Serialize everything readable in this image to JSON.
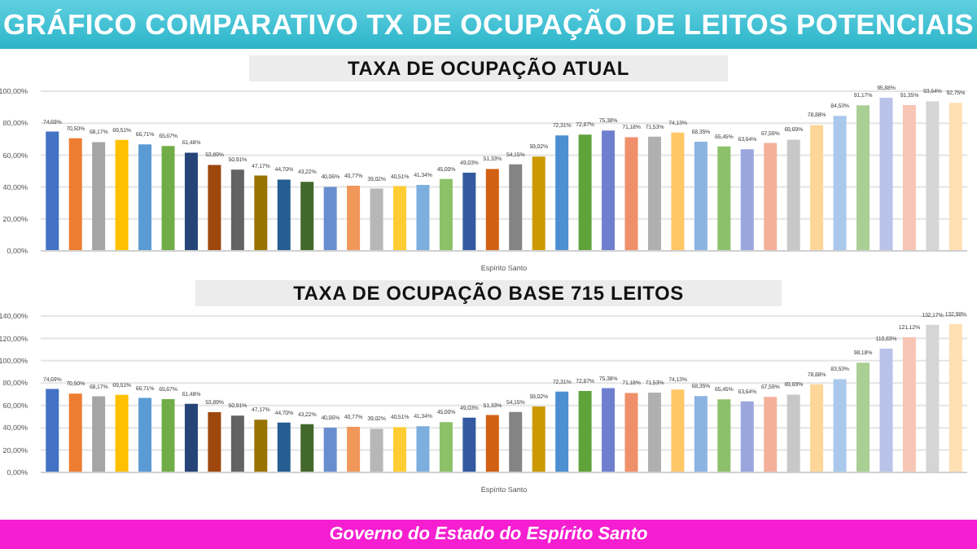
{
  "chart_data": [
    {
      "type": "bar",
      "title": "GRÁFICO COMPARATIVO TX DE OCUPAÇÃO DE LEITOS POTENCIAIS",
      "subtitle": "TAXA DE OCUPAÇÃO ATUAL",
      "xlabel": "Espírito Santo",
      "categories": [
        null,
        null,
        null,
        null,
        null,
        null,
        null,
        null,
        null,
        null,
        null,
        null,
        null,
        null,
        null,
        null,
        null,
        null,
        null,
        null,
        null,
        null,
        null,
        null,
        null,
        null,
        null,
        null,
        null,
        null,
        null,
        null,
        null,
        null,
        null,
        null,
        null,
        null,
        null,
        null
      ],
      "values": [
        74.69,
        70.5,
        68.17,
        69.51,
        66.71,
        65.67,
        61.48,
        53.89,
        50.91,
        47.17,
        44.7,
        43.22,
        40.06,
        40.77,
        39.02,
        40.51,
        41.34,
        45.0,
        49.03,
        51.33,
        54.15,
        59.02,
        72.31,
        72.87,
        75.38,
        71.18,
        71.53,
        74.13,
        68.35,
        65.45,
        63.64,
        67.59,
        69.69,
        78.88,
        84.53,
        91.17,
        95.88,
        91.35,
        93.64,
        92.75
      ],
      "value_labels": [
        "74,69%",
        "70,50%",
        "68,17%",
        "69,51%",
        "66,71%",
        "65,67%",
        "61,48%",
        "53,89%",
        "50,91%",
        "47,17%",
        "44,70%",
        "43,22%",
        "40,06%",
        "40,77%",
        "39,02%",
        "40,51%",
        "41,34%",
        "45,00%",
        "49,03%",
        "51,33%",
        "54,15%",
        "59,02%",
        "72,31%",
        "72,87%",
        "75,38%",
        "71,18%",
        "71,53%",
        "74,13%",
        "68,35%",
        "65,45%",
        "63,64%",
        "67,59%",
        "69,69%",
        "78,88%",
        "84,53%",
        "91,17%",
        "95,88%",
        "91,35%",
        "93,64%",
        "92,75%"
      ],
      "colors": [
        "#4472c4",
        "#ed7d31",
        "#a5a5a5",
        "#ffc000",
        "#5b9bd5",
        "#70ad47",
        "#264478",
        "#9e480e",
        "#636363",
        "#997300",
        "#255e91",
        "#43682b",
        "#698ed0",
        "#f1975a",
        "#b7b7b7",
        "#ffcd33",
        "#7cafdd",
        "#8cc168",
        "#335aa1",
        "#d26012",
        "#848484",
        "#cc9a00",
        "#4e8fd1",
        "#5fa33a",
        "#6f7fcf",
        "#f0906a",
        "#b0b0b0",
        "#ffc766",
        "#8cb4e2",
        "#8dc06b",
        "#9aa6dd",
        "#f4b09a",
        "#c8c8c8",
        "#ffd699",
        "#a9c8ec",
        "#aacf94",
        "#b9c3ea",
        "#f7c6b5",
        "#d5d5d5",
        "#ffe0b3"
      ],
      "ylim": [
        0,
        100
      ],
      "yticks": [
        {
          "value": 0,
          "label": "0,00%"
        },
        {
          "value": 20,
          "label": "20,00%"
        },
        {
          "value": 40,
          "label": "40,00%"
        },
        {
          "value": 60,
          "label": "60,00%"
        },
        {
          "value": 80,
          "label": "80,00%"
        },
        {
          "value": 100,
          "label": "100,00%"
        }
      ],
      "grid": "y",
      "legend": false
    },
    {
      "type": "bar",
      "title": "TAXA DE OCUPAÇÃO BASE 715 LEITOS",
      "xlabel": "Espírito Santo",
      "categories": [
        null,
        null,
        null,
        null,
        null,
        null,
        null,
        null,
        null,
        null,
        null,
        null,
        null,
        null,
        null,
        null,
        null,
        null,
        null,
        null,
        null,
        null,
        null,
        null,
        null,
        null,
        null,
        null,
        null,
        null,
        null,
        null,
        null,
        null,
        null,
        null,
        null,
        null,
        null,
        null
      ],
      "values": [
        74.69,
        70.5,
        68.17,
        69.51,
        66.71,
        65.67,
        61.48,
        53.89,
        50.91,
        47.17,
        44.7,
        43.22,
        40.06,
        40.77,
        39.02,
        40.51,
        41.34,
        45.0,
        49.03,
        51.33,
        54.15,
        59.02,
        72.31,
        72.87,
        75.38,
        71.18,
        71.53,
        74.13,
        68.35,
        65.45,
        63.64,
        67.59,
        69.69,
        78.88,
        83.53,
        98.18,
        110.83,
        121.12,
        132.17,
        132.98
      ],
      "value_labels": [
        "74,69%",
        "70,50%",
        "68,17%",
        "69,51%",
        "66,71%",
        "65,67%",
        "61,48%",
        "53,89%",
        "50,91%",
        "47,17%",
        "44,70%",
        "43,22%",
        "40,06%",
        "40,77%",
        "39,02%",
        "40,51%",
        "41,34%",
        "45,00%",
        "49,03%",
        "51,33%",
        "54,15%",
        "59,02%",
        "72,31%",
        "72,87%",
        "75,38%",
        "71,18%",
        "71,53%",
        "74,13%",
        "68,35%",
        "65,45%",
        "63,64%",
        "67,59%",
        "69,69%",
        "78,88%",
        "83,53%",
        "98,18%",
        "110,83%",
        "121,12%",
        "132,17%",
        "132,98%"
      ],
      "colors": [
        "#4472c4",
        "#ed7d31",
        "#a5a5a5",
        "#ffc000",
        "#5b9bd5",
        "#70ad47",
        "#264478",
        "#9e480e",
        "#636363",
        "#997300",
        "#255e91",
        "#43682b",
        "#698ed0",
        "#f1975a",
        "#b7b7b7",
        "#ffcd33",
        "#7cafdd",
        "#8cc168",
        "#335aa1",
        "#d26012",
        "#848484",
        "#cc9a00",
        "#4e8fd1",
        "#5fa33a",
        "#6f7fcf",
        "#f0906a",
        "#b0b0b0",
        "#ffc766",
        "#8cb4e2",
        "#8dc06b",
        "#9aa6dd",
        "#f4b09a",
        "#c8c8c8",
        "#ffd699",
        "#a9c8ec",
        "#aacf94",
        "#b9c3ea",
        "#f7c6b5",
        "#d5d5d5",
        "#ffe0b3"
      ],
      "ylim": [
        0,
        140
      ],
      "yticks": [
        {
          "value": 0,
          "label": "0,00%"
        },
        {
          "value": 20,
          "label": "20,00%"
        },
        {
          "value": 40,
          "label": "40,00%"
        },
        {
          "value": 60,
          "label": "60,00%"
        },
        {
          "value": 80,
          "label": "80,00%"
        },
        {
          "value": 100,
          "label": "100,00%"
        },
        {
          "value": 120,
          "label": "120,00%"
        },
        {
          "value": 140,
          "label": "140,00%"
        }
      ],
      "grid": "y",
      "legend": false,
      "annotations": [
        "Governo do Estado do Espírito Santo"
      ]
    }
  ]
}
